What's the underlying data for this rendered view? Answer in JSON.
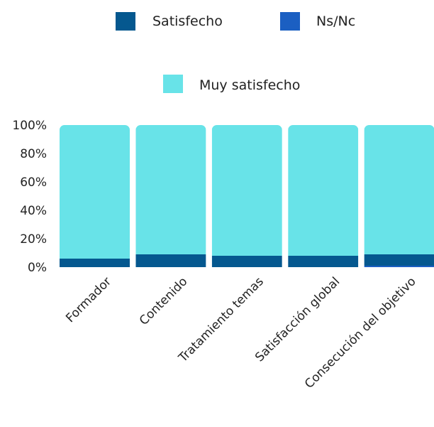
{
  "chart_data": {
    "type": "bar",
    "stacked": true,
    "percent": true,
    "categories": [
      "Formador",
      "Contenido",
      "Tratamiento temas",
      "Satisfacción global",
      "Consecución del objetivo"
    ],
    "series": [
      {
        "name": "Ns/Nc",
        "color": "#1b5fc2",
        "values": [
          0,
          0,
          0,
          0,
          1
        ]
      },
      {
        "name": "Satisfecho",
        "color": "#05588f",
        "values": [
          6,
          9,
          8,
          8,
          8
        ]
      },
      {
        "name": "Muy satisfecho",
        "color": "#68e3e8",
        "values": [
          94,
          91,
          92,
          92,
          91
        ]
      }
    ],
    "ylim": [
      0,
      100
    ],
    "yticks": [
      "0%",
      "20%",
      "40%",
      "60%",
      "80%",
      "100%"
    ],
    "legend_position": "top",
    "grid": false
  }
}
